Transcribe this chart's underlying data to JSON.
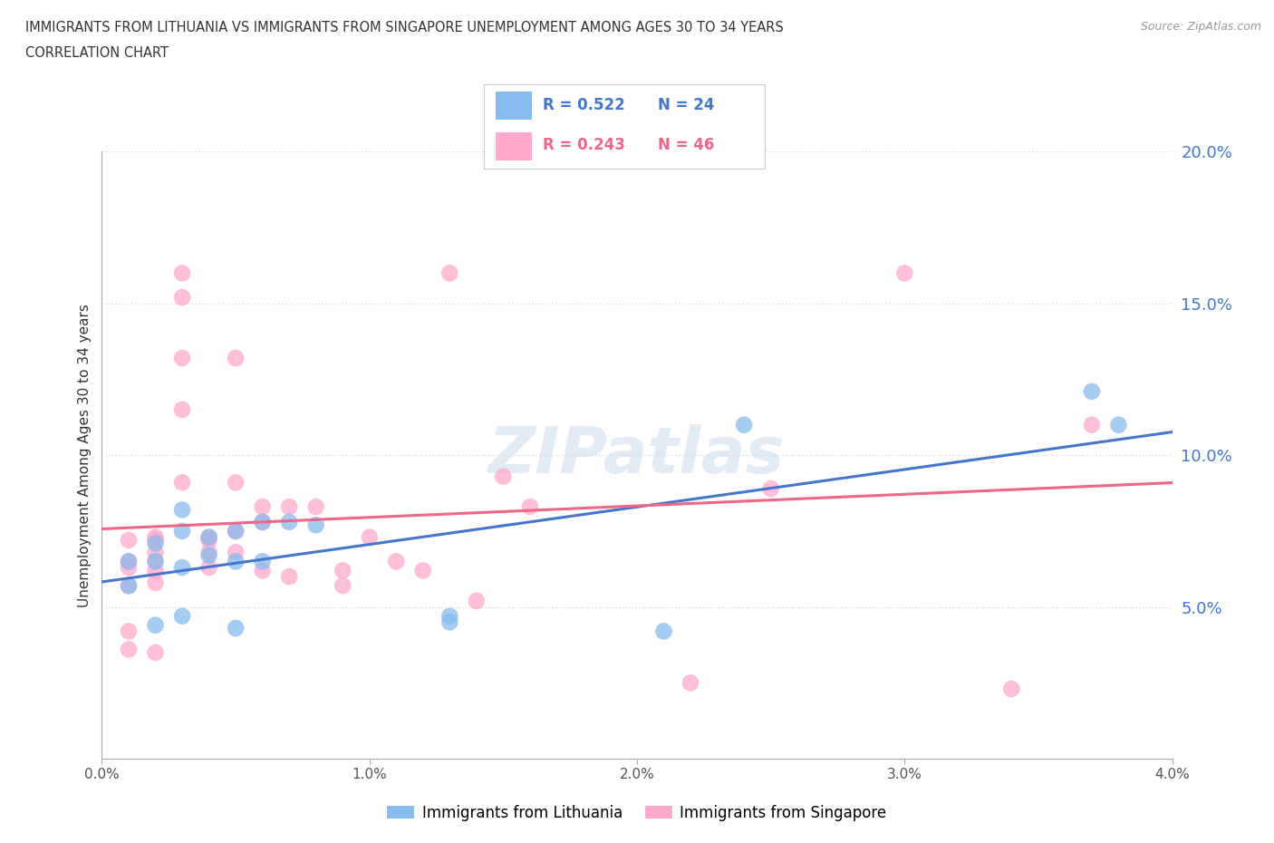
{
  "title_line1": "IMMIGRANTS FROM LITHUANIA VS IMMIGRANTS FROM SINGAPORE UNEMPLOYMENT AMONG AGES 30 TO 34 YEARS",
  "title_line2": "CORRELATION CHART",
  "source": "Source: ZipAtlas.com",
  "ylabel": "Unemployment Among Ages 30 to 34 years",
  "xlim": [
    0.0,
    0.04
  ],
  "ylim": [
    0.0,
    0.2
  ],
  "yticks": [
    0.05,
    0.1,
    0.15,
    0.2
  ],
  "ytick_labels": [
    "5.0%",
    "10.0%",
    "15.0%",
    "20.0%"
  ],
  "xticks": [
    0.0,
    0.01,
    0.02,
    0.03,
    0.04
  ],
  "xtick_labels": [
    "0.0%",
    "1.0%",
    "2.0%",
    "3.0%",
    "4.0%"
  ],
  "lithuania_color": "#88bbee",
  "singapore_color": "#ffaacc",
  "lithuania_line_color": "#4477cc",
  "singapore_line_color": "#ee6688",
  "R_lithuania": 0.522,
  "N_lithuania": 24,
  "R_singapore": 0.243,
  "N_singapore": 46,
  "legend_label_1": "Immigrants from Lithuania",
  "legend_label_2": "Immigrants from Singapore",
  "watermark": "ZIPatlas",
  "grid_color": "#dddddd",
  "lithuania_x": [
    0.001,
    0.001,
    0.002,
    0.002,
    0.002,
    0.003,
    0.003,
    0.003,
    0.003,
    0.004,
    0.004,
    0.005,
    0.005,
    0.005,
    0.006,
    0.006,
    0.007,
    0.008,
    0.013,
    0.013,
    0.021,
    0.024,
    0.037,
    0.038
  ],
  "lithuania_y": [
    0.065,
    0.057,
    0.071,
    0.065,
    0.044,
    0.082,
    0.075,
    0.063,
    0.047,
    0.073,
    0.067,
    0.075,
    0.065,
    0.043,
    0.078,
    0.065,
    0.078,
    0.077,
    0.047,
    0.045,
    0.042,
    0.11,
    0.121,
    0.11
  ],
  "singapore_x": [
    0.001,
    0.001,
    0.001,
    0.001,
    0.001,
    0.001,
    0.002,
    0.002,
    0.002,
    0.002,
    0.002,
    0.002,
    0.002,
    0.003,
    0.003,
    0.003,
    0.003,
    0.003,
    0.004,
    0.004,
    0.004,
    0.004,
    0.005,
    0.005,
    0.005,
    0.005,
    0.006,
    0.006,
    0.006,
    0.007,
    0.007,
    0.008,
    0.009,
    0.009,
    0.01,
    0.011,
    0.012,
    0.013,
    0.014,
    0.015,
    0.016,
    0.022,
    0.025,
    0.03,
    0.034,
    0.037
  ],
  "singapore_y": [
    0.072,
    0.065,
    0.063,
    0.057,
    0.042,
    0.036,
    0.073,
    0.072,
    0.068,
    0.065,
    0.062,
    0.058,
    0.035,
    0.16,
    0.152,
    0.132,
    0.115,
    0.091,
    0.073,
    0.072,
    0.068,
    0.063,
    0.132,
    0.091,
    0.075,
    0.068,
    0.083,
    0.078,
    0.062,
    0.083,
    0.06,
    0.083,
    0.062,
    0.057,
    0.073,
    0.065,
    0.062,
    0.16,
    0.052,
    0.093,
    0.083,
    0.025,
    0.089,
    0.16,
    0.023,
    0.11
  ]
}
